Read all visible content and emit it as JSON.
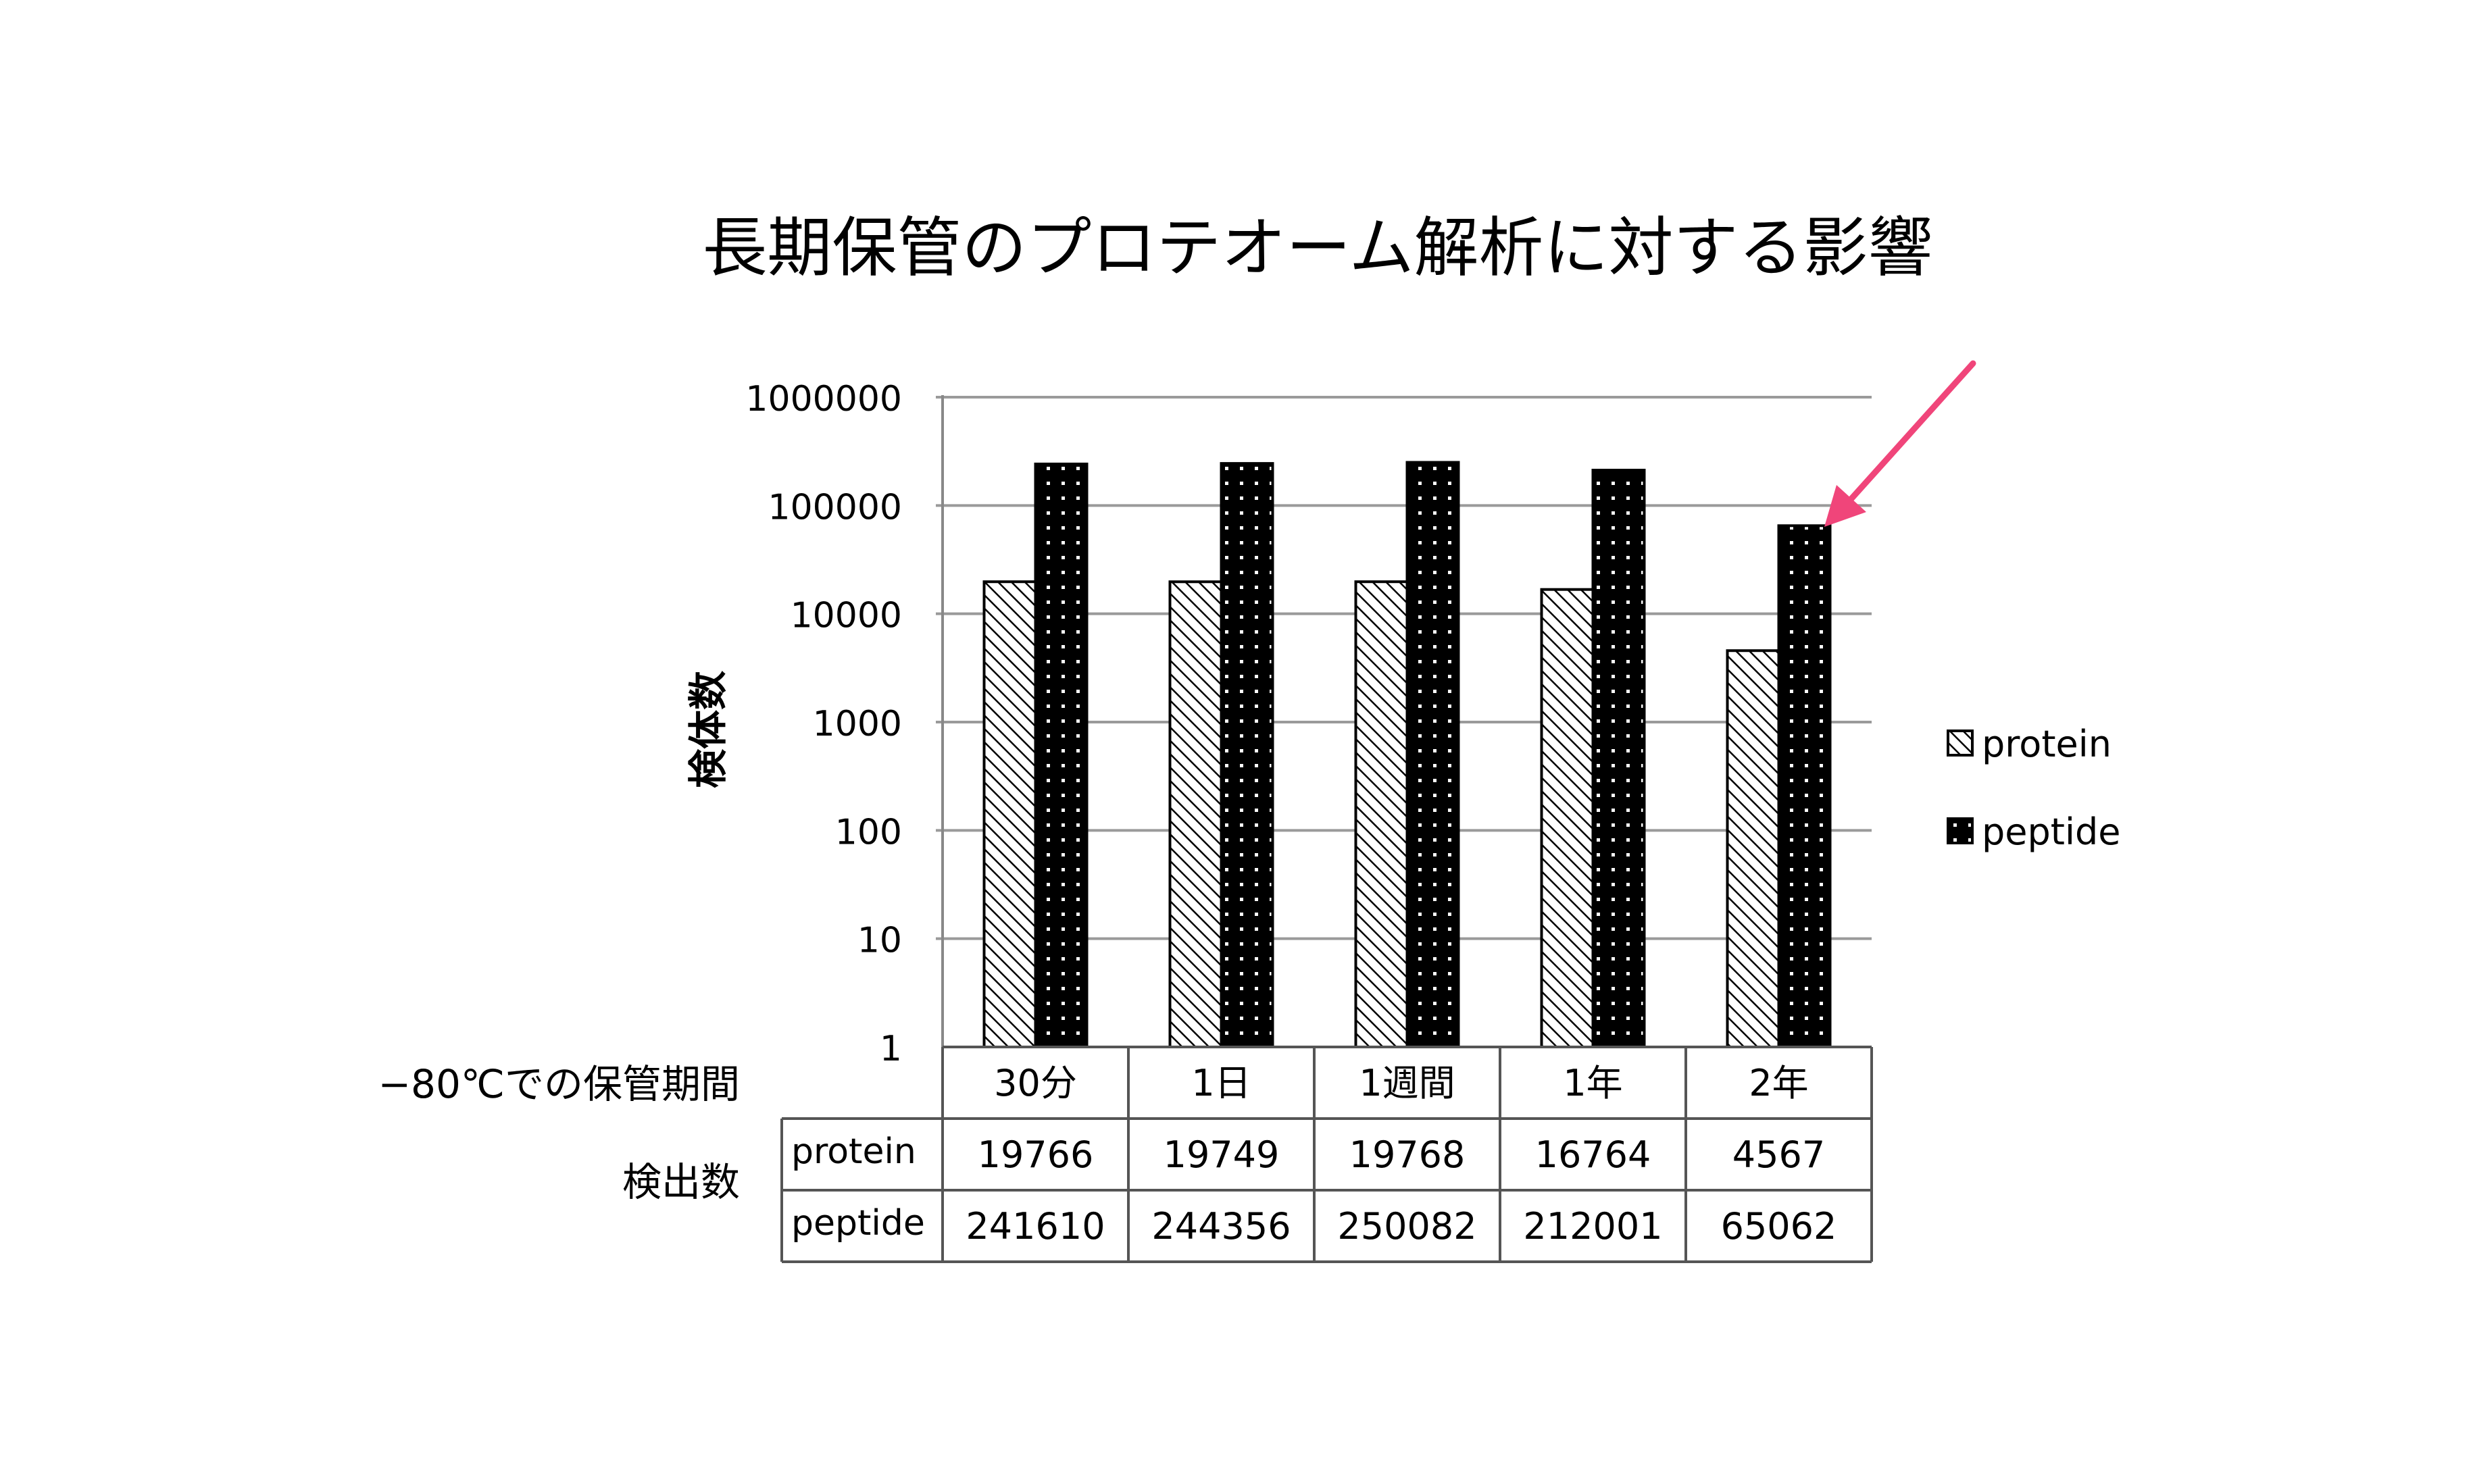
{
  "chart_data": {
    "type": "bar",
    "title": "長期保管のプロテオーム解析に対する影響",
    "ylabel": "検体数",
    "yscale": "log",
    "ylim": [
      1,
      1000000
    ],
    "yticks": [
      "1",
      "10",
      "100",
      "1000",
      "10000",
      "100000",
      "1000000"
    ],
    "grid": true,
    "legend_position": "right",
    "categories": [
      "30分",
      "1日",
      "1週間",
      "1年",
      "2年"
    ],
    "series": [
      {
        "name": "protein",
        "values": [
          19766,
          19749,
          19768,
          16764,
          4567
        ]
      },
      {
        "name": "peptide",
        "values": [
          241610,
          244356,
          250082,
          212001,
          65062
        ]
      }
    ],
    "table": {
      "header_label": "−80℃での保管期間",
      "rows_group_label": "検出数",
      "row_labels": [
        "protein",
        "peptide"
      ],
      "values": [
        [
          "19766",
          "19749",
          "19768",
          "16764",
          "4567"
        ],
        [
          "241610",
          "244356",
          "250082",
          "212001",
          "65062"
        ]
      ]
    },
    "annotation": {
      "type": "arrow",
      "target": "2年 peptide",
      "color": "#f0457a"
    }
  }
}
